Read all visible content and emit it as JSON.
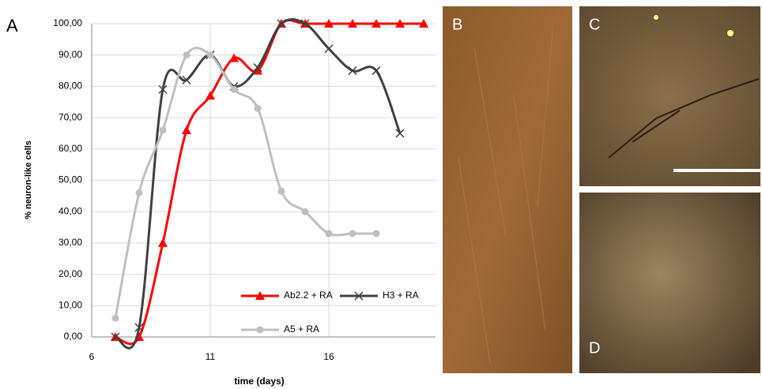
{
  "chart_data": {
    "type": "line",
    "panel_label": "A",
    "x_label": "time (days)",
    "y_label": "% neuron-like cells",
    "xlim": [
      6,
      20.5
    ],
    "xticks": [
      6,
      11,
      16
    ],
    "ylim": [
      0,
      100
    ],
    "yticks": [
      {
        "value": 0,
        "label": "0,00"
      },
      {
        "value": 10,
        "label": "10,00"
      },
      {
        "value": 20,
        "label": "20,00"
      },
      {
        "value": 30,
        "label": "30,00"
      },
      {
        "value": 40,
        "label": "40,00"
      },
      {
        "value": 50,
        "label": "50,00"
      },
      {
        "value": 60,
        "label": "60,00"
      },
      {
        "value": 70,
        "label": "70,00"
      },
      {
        "value": 80,
        "label": "80,00"
      },
      {
        "value": 90,
        "label": "90,00"
      },
      {
        "value": 100,
        "label": "100,00"
      }
    ],
    "grid": true,
    "series": [
      {
        "name": "Ab2.2 + RA",
        "color": "#ff0000",
        "marker": "triangle",
        "x": [
          7,
          8,
          9,
          10,
          11,
          12,
          13,
          14,
          15,
          16,
          17,
          18,
          19,
          20
        ],
        "values": [
          0,
          0,
          30,
          66,
          77,
          89,
          85,
          100,
          100,
          100,
          100,
          100,
          100,
          100
        ]
      },
      {
        "name": "H3 + RA",
        "color": "#404040",
        "marker": "x",
        "x": [
          7,
          8,
          9,
          10,
          11,
          12,
          13,
          14,
          15,
          16,
          17,
          18,
          19
        ],
        "values": [
          0,
          3,
          79,
          82,
          90,
          80,
          86,
          100,
          100,
          92,
          85,
          85,
          65
        ]
      },
      {
        "name": "A5 + RA",
        "color": "#bfbfbf",
        "marker": "circle",
        "x": [
          7,
          8,
          9,
          10,
          11,
          12,
          13,
          14,
          15,
          16,
          17,
          18
        ],
        "values": [
          6,
          46,
          66,
          90,
          90,
          79,
          73,
          46.5,
          40,
          33,
          33,
          33
        ]
      }
    ]
  },
  "panels": {
    "b": "B",
    "c": "C",
    "d": "D"
  }
}
